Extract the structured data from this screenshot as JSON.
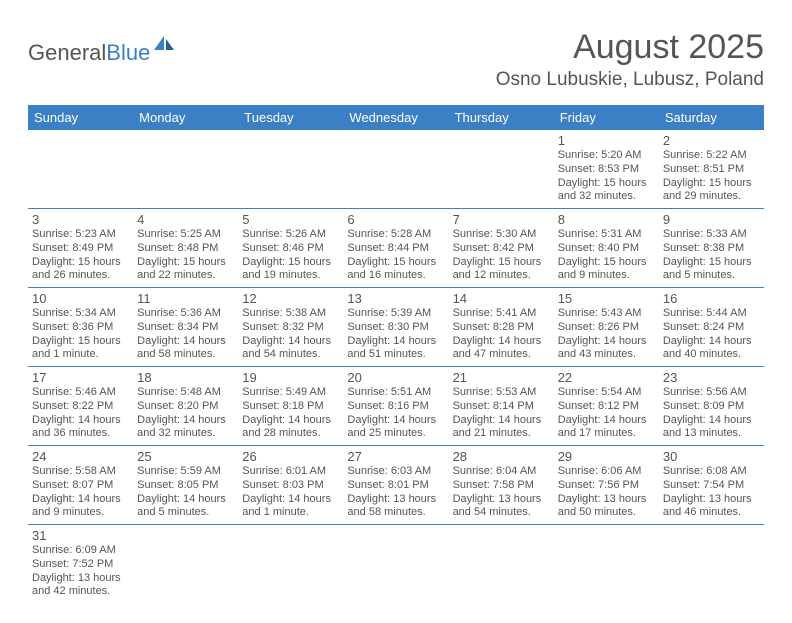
{
  "logo": {
    "part1": "General",
    "part2": "Blue"
  },
  "title": "August 2025",
  "location": "Osno Lubuskie, Lubusz, Poland",
  "colors": {
    "header_bg": "#3b7fc4",
    "header_text": "#ffffff",
    "text": "#555555",
    "rule": "#3b7fc4",
    "background": "#ffffff"
  },
  "typography": {
    "title_fontsize": 34,
    "location_fontsize": 19,
    "dayhead_fontsize": 13,
    "daynum_fontsize": 13,
    "body_fontsize": 11
  },
  "day_headers": [
    "Sunday",
    "Monday",
    "Tuesday",
    "Wednesday",
    "Thursday",
    "Friday",
    "Saturday"
  ],
  "weeks": [
    [
      null,
      null,
      null,
      null,
      null,
      {
        "n": "1",
        "sr": "Sunrise: 5:20 AM",
        "ss": "Sunset: 8:53 PM",
        "d1": "Daylight: 15 hours",
        "d2": "and 32 minutes."
      },
      {
        "n": "2",
        "sr": "Sunrise: 5:22 AM",
        "ss": "Sunset: 8:51 PM",
        "d1": "Daylight: 15 hours",
        "d2": "and 29 minutes."
      }
    ],
    [
      {
        "n": "3",
        "sr": "Sunrise: 5:23 AM",
        "ss": "Sunset: 8:49 PM",
        "d1": "Daylight: 15 hours",
        "d2": "and 26 minutes."
      },
      {
        "n": "4",
        "sr": "Sunrise: 5:25 AM",
        "ss": "Sunset: 8:48 PM",
        "d1": "Daylight: 15 hours",
        "d2": "and 22 minutes."
      },
      {
        "n": "5",
        "sr": "Sunrise: 5:26 AM",
        "ss": "Sunset: 8:46 PM",
        "d1": "Daylight: 15 hours",
        "d2": "and 19 minutes."
      },
      {
        "n": "6",
        "sr": "Sunrise: 5:28 AM",
        "ss": "Sunset: 8:44 PM",
        "d1": "Daylight: 15 hours",
        "d2": "and 16 minutes."
      },
      {
        "n": "7",
        "sr": "Sunrise: 5:30 AM",
        "ss": "Sunset: 8:42 PM",
        "d1": "Daylight: 15 hours",
        "d2": "and 12 minutes."
      },
      {
        "n": "8",
        "sr": "Sunrise: 5:31 AM",
        "ss": "Sunset: 8:40 PM",
        "d1": "Daylight: 15 hours",
        "d2": "and 9 minutes."
      },
      {
        "n": "9",
        "sr": "Sunrise: 5:33 AM",
        "ss": "Sunset: 8:38 PM",
        "d1": "Daylight: 15 hours",
        "d2": "and 5 minutes."
      }
    ],
    [
      {
        "n": "10",
        "sr": "Sunrise: 5:34 AM",
        "ss": "Sunset: 8:36 PM",
        "d1": "Daylight: 15 hours",
        "d2": "and 1 minute."
      },
      {
        "n": "11",
        "sr": "Sunrise: 5:36 AM",
        "ss": "Sunset: 8:34 PM",
        "d1": "Daylight: 14 hours",
        "d2": "and 58 minutes."
      },
      {
        "n": "12",
        "sr": "Sunrise: 5:38 AM",
        "ss": "Sunset: 8:32 PM",
        "d1": "Daylight: 14 hours",
        "d2": "and 54 minutes."
      },
      {
        "n": "13",
        "sr": "Sunrise: 5:39 AM",
        "ss": "Sunset: 8:30 PM",
        "d1": "Daylight: 14 hours",
        "d2": "and 51 minutes."
      },
      {
        "n": "14",
        "sr": "Sunrise: 5:41 AM",
        "ss": "Sunset: 8:28 PM",
        "d1": "Daylight: 14 hours",
        "d2": "and 47 minutes."
      },
      {
        "n": "15",
        "sr": "Sunrise: 5:43 AM",
        "ss": "Sunset: 8:26 PM",
        "d1": "Daylight: 14 hours",
        "d2": "and 43 minutes."
      },
      {
        "n": "16",
        "sr": "Sunrise: 5:44 AM",
        "ss": "Sunset: 8:24 PM",
        "d1": "Daylight: 14 hours",
        "d2": "and 40 minutes."
      }
    ],
    [
      {
        "n": "17",
        "sr": "Sunrise: 5:46 AM",
        "ss": "Sunset: 8:22 PM",
        "d1": "Daylight: 14 hours",
        "d2": "and 36 minutes."
      },
      {
        "n": "18",
        "sr": "Sunrise: 5:48 AM",
        "ss": "Sunset: 8:20 PM",
        "d1": "Daylight: 14 hours",
        "d2": "and 32 minutes."
      },
      {
        "n": "19",
        "sr": "Sunrise: 5:49 AM",
        "ss": "Sunset: 8:18 PM",
        "d1": "Daylight: 14 hours",
        "d2": "and 28 minutes."
      },
      {
        "n": "20",
        "sr": "Sunrise: 5:51 AM",
        "ss": "Sunset: 8:16 PM",
        "d1": "Daylight: 14 hours",
        "d2": "and 25 minutes."
      },
      {
        "n": "21",
        "sr": "Sunrise: 5:53 AM",
        "ss": "Sunset: 8:14 PM",
        "d1": "Daylight: 14 hours",
        "d2": "and 21 minutes."
      },
      {
        "n": "22",
        "sr": "Sunrise: 5:54 AM",
        "ss": "Sunset: 8:12 PM",
        "d1": "Daylight: 14 hours",
        "d2": "and 17 minutes."
      },
      {
        "n": "23",
        "sr": "Sunrise: 5:56 AM",
        "ss": "Sunset: 8:09 PM",
        "d1": "Daylight: 14 hours",
        "d2": "and 13 minutes."
      }
    ],
    [
      {
        "n": "24",
        "sr": "Sunrise: 5:58 AM",
        "ss": "Sunset: 8:07 PM",
        "d1": "Daylight: 14 hours",
        "d2": "and 9 minutes."
      },
      {
        "n": "25",
        "sr": "Sunrise: 5:59 AM",
        "ss": "Sunset: 8:05 PM",
        "d1": "Daylight: 14 hours",
        "d2": "and 5 minutes."
      },
      {
        "n": "26",
        "sr": "Sunrise: 6:01 AM",
        "ss": "Sunset: 8:03 PM",
        "d1": "Daylight: 14 hours",
        "d2": "and 1 minute."
      },
      {
        "n": "27",
        "sr": "Sunrise: 6:03 AM",
        "ss": "Sunset: 8:01 PM",
        "d1": "Daylight: 13 hours",
        "d2": "and 58 minutes."
      },
      {
        "n": "28",
        "sr": "Sunrise: 6:04 AM",
        "ss": "Sunset: 7:58 PM",
        "d1": "Daylight: 13 hours",
        "d2": "and 54 minutes."
      },
      {
        "n": "29",
        "sr": "Sunrise: 6:06 AM",
        "ss": "Sunset: 7:56 PM",
        "d1": "Daylight: 13 hours",
        "d2": "and 50 minutes."
      },
      {
        "n": "30",
        "sr": "Sunrise: 6:08 AM",
        "ss": "Sunset: 7:54 PM",
        "d1": "Daylight: 13 hours",
        "d2": "and 46 minutes."
      }
    ],
    [
      {
        "n": "31",
        "sr": "Sunrise: 6:09 AM",
        "ss": "Sunset: 7:52 PM",
        "d1": "Daylight: 13 hours",
        "d2": "and 42 minutes."
      },
      null,
      null,
      null,
      null,
      null,
      null
    ]
  ]
}
